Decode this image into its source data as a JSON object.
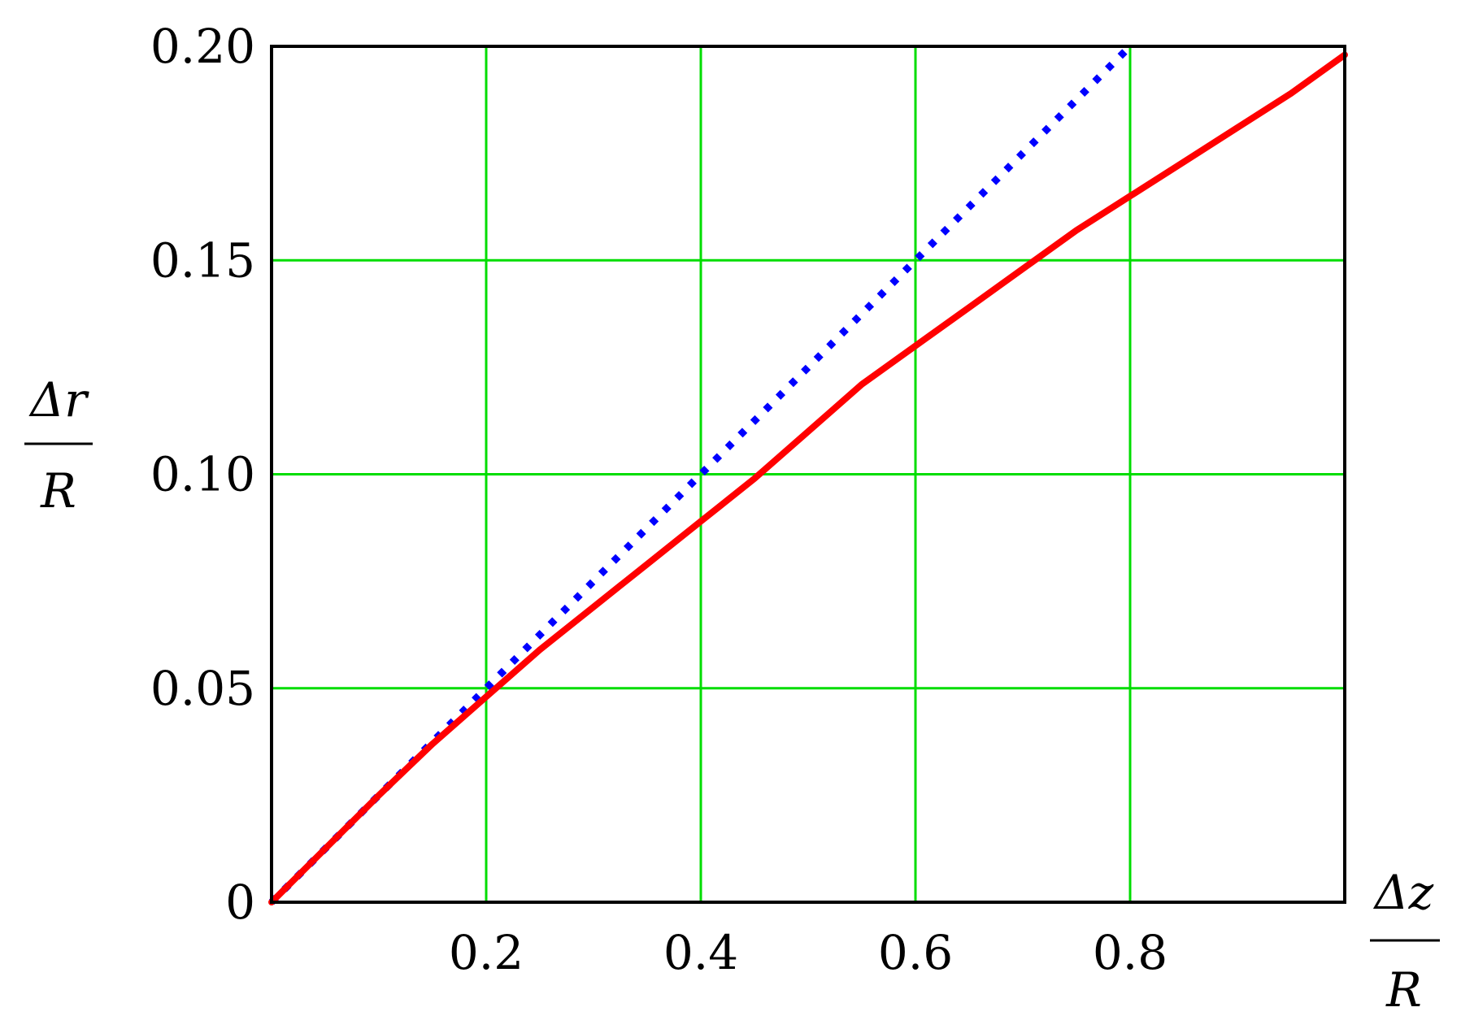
{
  "chart_data": {
    "type": "line",
    "xlabel": {
      "numerator": "Δz",
      "denominator": "R"
    },
    "ylabel": {
      "numerator": "Δr",
      "denominator": "R"
    },
    "xlim": [
      0,
      1.0
    ],
    "ylim": [
      0,
      0.2
    ],
    "x_ticks": [
      {
        "value": 0.2,
        "label": "0.2"
      },
      {
        "value": 0.4,
        "label": "0.4"
      },
      {
        "value": 0.6,
        "label": "0.6"
      },
      {
        "value": 0.8,
        "label": "0.8"
      }
    ],
    "y_ticks": [
      {
        "value": 0,
        "label": "0"
      },
      {
        "value": 0.05,
        "label": "0.05"
      },
      {
        "value": 0.1,
        "label": "0.10"
      },
      {
        "value": 0.15,
        "label": "0.15"
      },
      {
        "value": 0.2,
        "label": "0.20"
      }
    ],
    "grid": true,
    "colors": {
      "grid": "#00dd00",
      "frame": "#000000"
    },
    "series": [
      {
        "style": "dotted",
        "color": "#0000ff",
        "x": [
          0,
          0.1,
          0.2,
          0.3,
          0.4,
          0.5,
          0.6,
          0.7,
          0.8
        ],
        "y": [
          0,
          0.025,
          0.05,
          0.075,
          0.1,
          0.125,
          0.15,
          0.175,
          0.2
        ]
      },
      {
        "style": "solid",
        "color": "#ff0000",
        "x": [
          0,
          0.05,
          0.1,
          0.15,
          0.2,
          0.25,
          0.3,
          0.35,
          0.4,
          0.45,
          0.5,
          0.55,
          0.6,
          0.65,
          0.7,
          0.75,
          0.8,
          0.85,
          0.9,
          0.95,
          1.0
        ],
        "y": [
          0,
          0.0125,
          0.025,
          0.037,
          0.048,
          0.059,
          0.069,
          0.079,
          0.089,
          0.099,
          0.11,
          0.121,
          0.13,
          0.139,
          0.148,
          0.157,
          0.165,
          0.173,
          0.181,
          0.189,
          0.198
        ]
      }
    ]
  }
}
